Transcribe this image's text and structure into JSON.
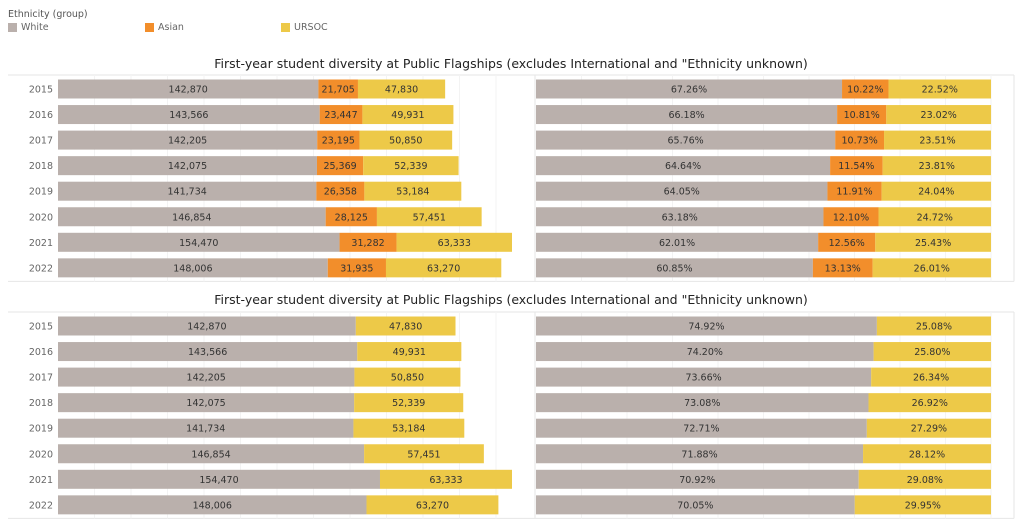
{
  "legend": {
    "title": "Ethnicity (group)",
    "items": [
      {
        "label": "White",
        "color": "#bab0ac"
      },
      {
        "label": "Asian",
        "color": "#f28e2b"
      },
      {
        "label": "URSOC",
        "color": "#edc948"
      }
    ]
  },
  "chart_data": [
    {
      "type": "bar",
      "orientation": "horizontal-stacked",
      "title": "First-year student diversity at Public Flagships (excludes International and \"Ethnicity unknown)",
      "categories": [
        "2015",
        "2016",
        "2017",
        "2018",
        "2019",
        "2020",
        "2021",
        "2022"
      ],
      "panels": [
        {
          "name": "counts",
          "series": [
            {
              "name": "White",
              "values": [
                142870,
                143566,
                142205,
                142075,
                141734,
                146854,
                154470,
                148006
              ],
              "labels": [
                "142,870",
                "143,566",
                "142,205",
                "142,075",
                "141,734",
                "146,854",
                "154,470",
                "148,006"
              ]
            },
            {
              "name": "Asian",
              "values": [
                21705,
                23447,
                23195,
                25369,
                26358,
                28125,
                31282,
                31935
              ],
              "labels": [
                "21,705",
                "23,447",
                "23,195",
                "25,369",
                "26,358",
                "28,125",
                "31,282",
                "31,935"
              ]
            },
            {
              "name": "URSOC",
              "values": [
                47830,
                49931,
                50850,
                52339,
                53184,
                57451,
                63333,
                63270
              ],
              "labels": [
                "47,830",
                "49,931",
                "50,850",
                "52,339",
                "53,184",
                "57,451",
                "63,333",
                "63,270"
              ]
            }
          ],
          "xlim": [
            0,
            250000
          ]
        },
        {
          "name": "percent",
          "series": [
            {
              "name": "White",
              "values": [
                67.26,
                66.18,
                65.76,
                64.64,
                64.05,
                63.18,
                62.01,
                60.85
              ],
              "labels": [
                "67.26%",
                "66.18%",
                "65.76%",
                "64.64%",
                "64.05%",
                "63.18%",
                "62.01%",
                "60.85%"
              ]
            },
            {
              "name": "Asian",
              "values": [
                10.22,
                10.81,
                10.73,
                11.54,
                11.91,
                12.1,
                12.56,
                13.13
              ],
              "labels": [
                "10.22%",
                "10.81%",
                "10.73%",
                "11.54%",
                "11.91%",
                "12.10%",
                "12.56%",
                "13.13%"
              ]
            },
            {
              "name": "URSOC",
              "values": [
                22.52,
                23.02,
                23.51,
                23.81,
                24.04,
                24.72,
                25.43,
                26.01
              ],
              "labels": [
                "22.52%",
                "23.02%",
                "23.51%",
                "23.81%",
                "24.04%",
                "24.72%",
                "25.43%",
                "26.01%"
              ]
            }
          ],
          "xlim": [
            0,
            100
          ]
        }
      ]
    },
    {
      "type": "bar",
      "orientation": "horizontal-stacked",
      "title": "First-year student diversity at Public Flagships (excludes International and \"Ethnicity unknown)",
      "categories": [
        "2015",
        "2016",
        "2017",
        "2018",
        "2019",
        "2020",
        "2021",
        "2022"
      ],
      "panels": [
        {
          "name": "counts",
          "series": [
            {
              "name": "White",
              "values": [
                142870,
                143566,
                142205,
                142075,
                141734,
                146854,
                154470,
                148006
              ],
              "labels": [
                "142,870",
                "143,566",
                "142,205",
                "142,075",
                "141,734",
                "146,854",
                "154,470",
                "148,006"
              ]
            },
            {
              "name": "URSOC",
              "values": [
                47830,
                49931,
                50850,
                52339,
                53184,
                57451,
                63333,
                63270
              ],
              "labels": [
                "47,830",
                "49,931",
                "50,850",
                "52,339",
                "53,184",
                "57,451",
                "63,333",
                "63,270"
              ]
            }
          ],
          "xlim": [
            0,
            220000
          ]
        },
        {
          "name": "percent",
          "series": [
            {
              "name": "White",
              "values": [
                74.92,
                74.2,
                73.66,
                73.08,
                72.71,
                71.88,
                70.92,
                70.05
              ],
              "labels": [
                "74.92%",
                "74.20%",
                "73.66%",
                "73.08%",
                "72.71%",
                "71.88%",
                "70.92%",
                "70.05%"
              ]
            },
            {
              "name": "URSOC",
              "values": [
                25.08,
                25.8,
                26.34,
                26.92,
                27.29,
                28.12,
                29.08,
                29.95
              ],
              "labels": [
                "25.08%",
                "25.80%",
                "26.34%",
                "26.92%",
                "27.29%",
                "28.12%",
                "29.08%",
                "29.95%"
              ]
            }
          ],
          "xlim": [
            0,
            100
          ]
        }
      ]
    }
  ]
}
